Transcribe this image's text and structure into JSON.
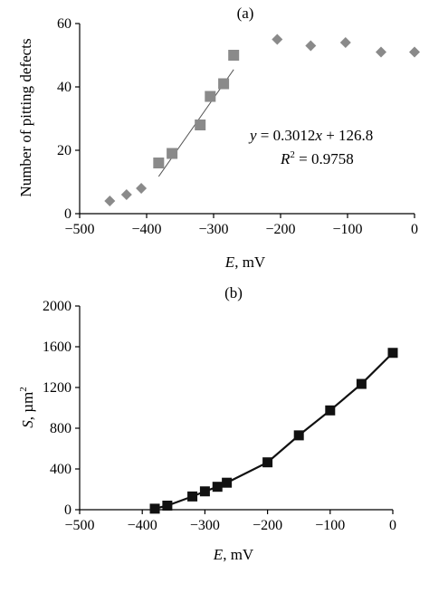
{
  "chart_data": [
    {
      "type": "scatter",
      "panel_label": "(a)",
      "xlabel_italic": "E",
      "xlabel_rest": ", mV",
      "ylabel": "Number of pitting defects",
      "xlim": [
        -500,
        0
      ],
      "ylim": [
        0,
        60
      ],
      "xticks": [
        -500,
        -400,
        -300,
        -200,
        -100,
        0
      ],
      "xtick_labels": [
        "−500",
        "−400",
        "−300",
        "−200",
        "−100",
        "0"
      ],
      "yticks": [
        0,
        20,
        40,
        60
      ],
      "ytick_labels": [
        "0",
        "20",
        "40",
        "60"
      ],
      "grid": false,
      "colors": {
        "markers": "#8a8a8a",
        "fit": "#555555",
        "axes": "#000000"
      },
      "series": [
        {
          "marker": "diamond",
          "points": [
            {
              "x": -455,
              "y": 4
            },
            {
              "x": -430,
              "y": 6
            },
            {
              "x": -408,
              "y": 8
            },
            {
              "x": -205,
              "y": 55
            },
            {
              "x": -155,
              "y": 53
            },
            {
              "x": -103,
              "y": 54
            },
            {
              "x": -50,
              "y": 51
            },
            {
              "x": 0,
              "y": 51
            }
          ]
        },
        {
          "marker": "square",
          "points": [
            {
              "x": -382,
              "y": 16
            },
            {
              "x": -362,
              "y": 19
            },
            {
              "x": -320,
              "y": 28
            },
            {
              "x": -305,
              "y": 37
            },
            {
              "x": -285,
              "y": 41
            },
            {
              "x": -270,
              "y": 50
            }
          ]
        }
      ],
      "fit_line": {
        "x_start": -382,
        "x_end": -270,
        "slope": 0.3012,
        "intercept": 126.8
      },
      "annotation": {
        "eq_y": "y",
        "eq_mid": " = 0.3012",
        "eq_x": "x",
        "eq_end": " + 126.8",
        "r_label": "R",
        "r_sup": "2",
        "r_value": " = 0.9758"
      }
    },
    {
      "type": "line",
      "panel_label": "(b)",
      "xlabel_italic": "E",
      "xlabel_rest": ", mV",
      "ylabel_italic": "S",
      "ylabel_rest": ", µm",
      "ylabel_sup": "2",
      "xlim": [
        -500,
        0
      ],
      "ylim": [
        0,
        2000
      ],
      "xticks": [
        -500,
        -400,
        -300,
        -200,
        -100,
        0
      ],
      "xtick_labels": [
        "−500",
        "−400",
        "−300",
        "−200",
        "−100",
        "0"
      ],
      "yticks": [
        0,
        400,
        800,
        1200,
        1600,
        2000
      ],
      "ytick_labels": [
        "0",
        "400",
        "800",
        "1200",
        "1600",
        "2000"
      ],
      "grid": false,
      "colors": {
        "line": "#111111",
        "axes": "#000000"
      },
      "series": [
        {
          "marker": "square",
          "x": [
            -380,
            -360,
            -320,
            -300,
            -280,
            -265,
            -200,
            -150,
            -100,
            -50,
            0
          ],
          "y": [
            10,
            40,
            130,
            180,
            225,
            265,
            465,
            730,
            975,
            1235,
            1540
          ]
        }
      ]
    }
  ]
}
